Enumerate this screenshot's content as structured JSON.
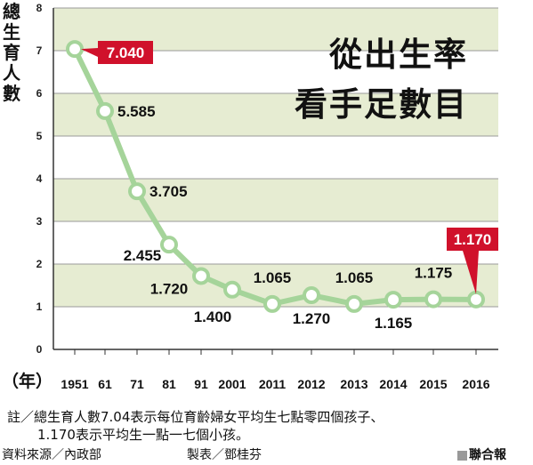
{
  "headline": {
    "line1": "從出生率",
    "line2": "看手足數目"
  },
  "note": {
    "line1": "註／總生育人數7.04表示每位育齡婦女平均生七點零四個孩子、",
    "line2": "1.170表示平均生一點一七個小孩。"
  },
  "footer": {
    "source": "資料來源／內政部",
    "maker": "製表／鄧桂芬",
    "brand": "聯合報"
  },
  "chart_data": {
    "type": "line",
    "ylabel": "總生育人數",
    "unit_label": "（年）",
    "categories": [
      "1951",
      "61",
      "71",
      "81",
      "91",
      "2001",
      "2011",
      "2012",
      "2013",
      "2014",
      "2015",
      "2016"
    ],
    "values": [
      7.04,
      5.585,
      3.705,
      2.455,
      1.72,
      1.4,
      1.065,
      1.27,
      1.065,
      1.165,
      1.175,
      1.17
    ],
    "data_labels": [
      "7.040",
      "5.585",
      "3.705",
      "2.455",
      "1.720",
      "1.400",
      "1.065",
      "1.270",
      "1.065",
      "1.165",
      "1.175",
      "1.170"
    ],
    "highlighted": [
      "1951",
      "2016"
    ],
    "ylim": [
      0,
      8
    ],
    "yticks": [
      "0",
      "1",
      "2",
      "3",
      "4",
      "5",
      "6",
      "7",
      "8"
    ],
    "grid": true,
    "colors": {
      "line": "#a5d49a",
      "marker_fill": "#ffffff",
      "band": "#e6ecd2",
      "highlight": "#d0112b"
    }
  }
}
